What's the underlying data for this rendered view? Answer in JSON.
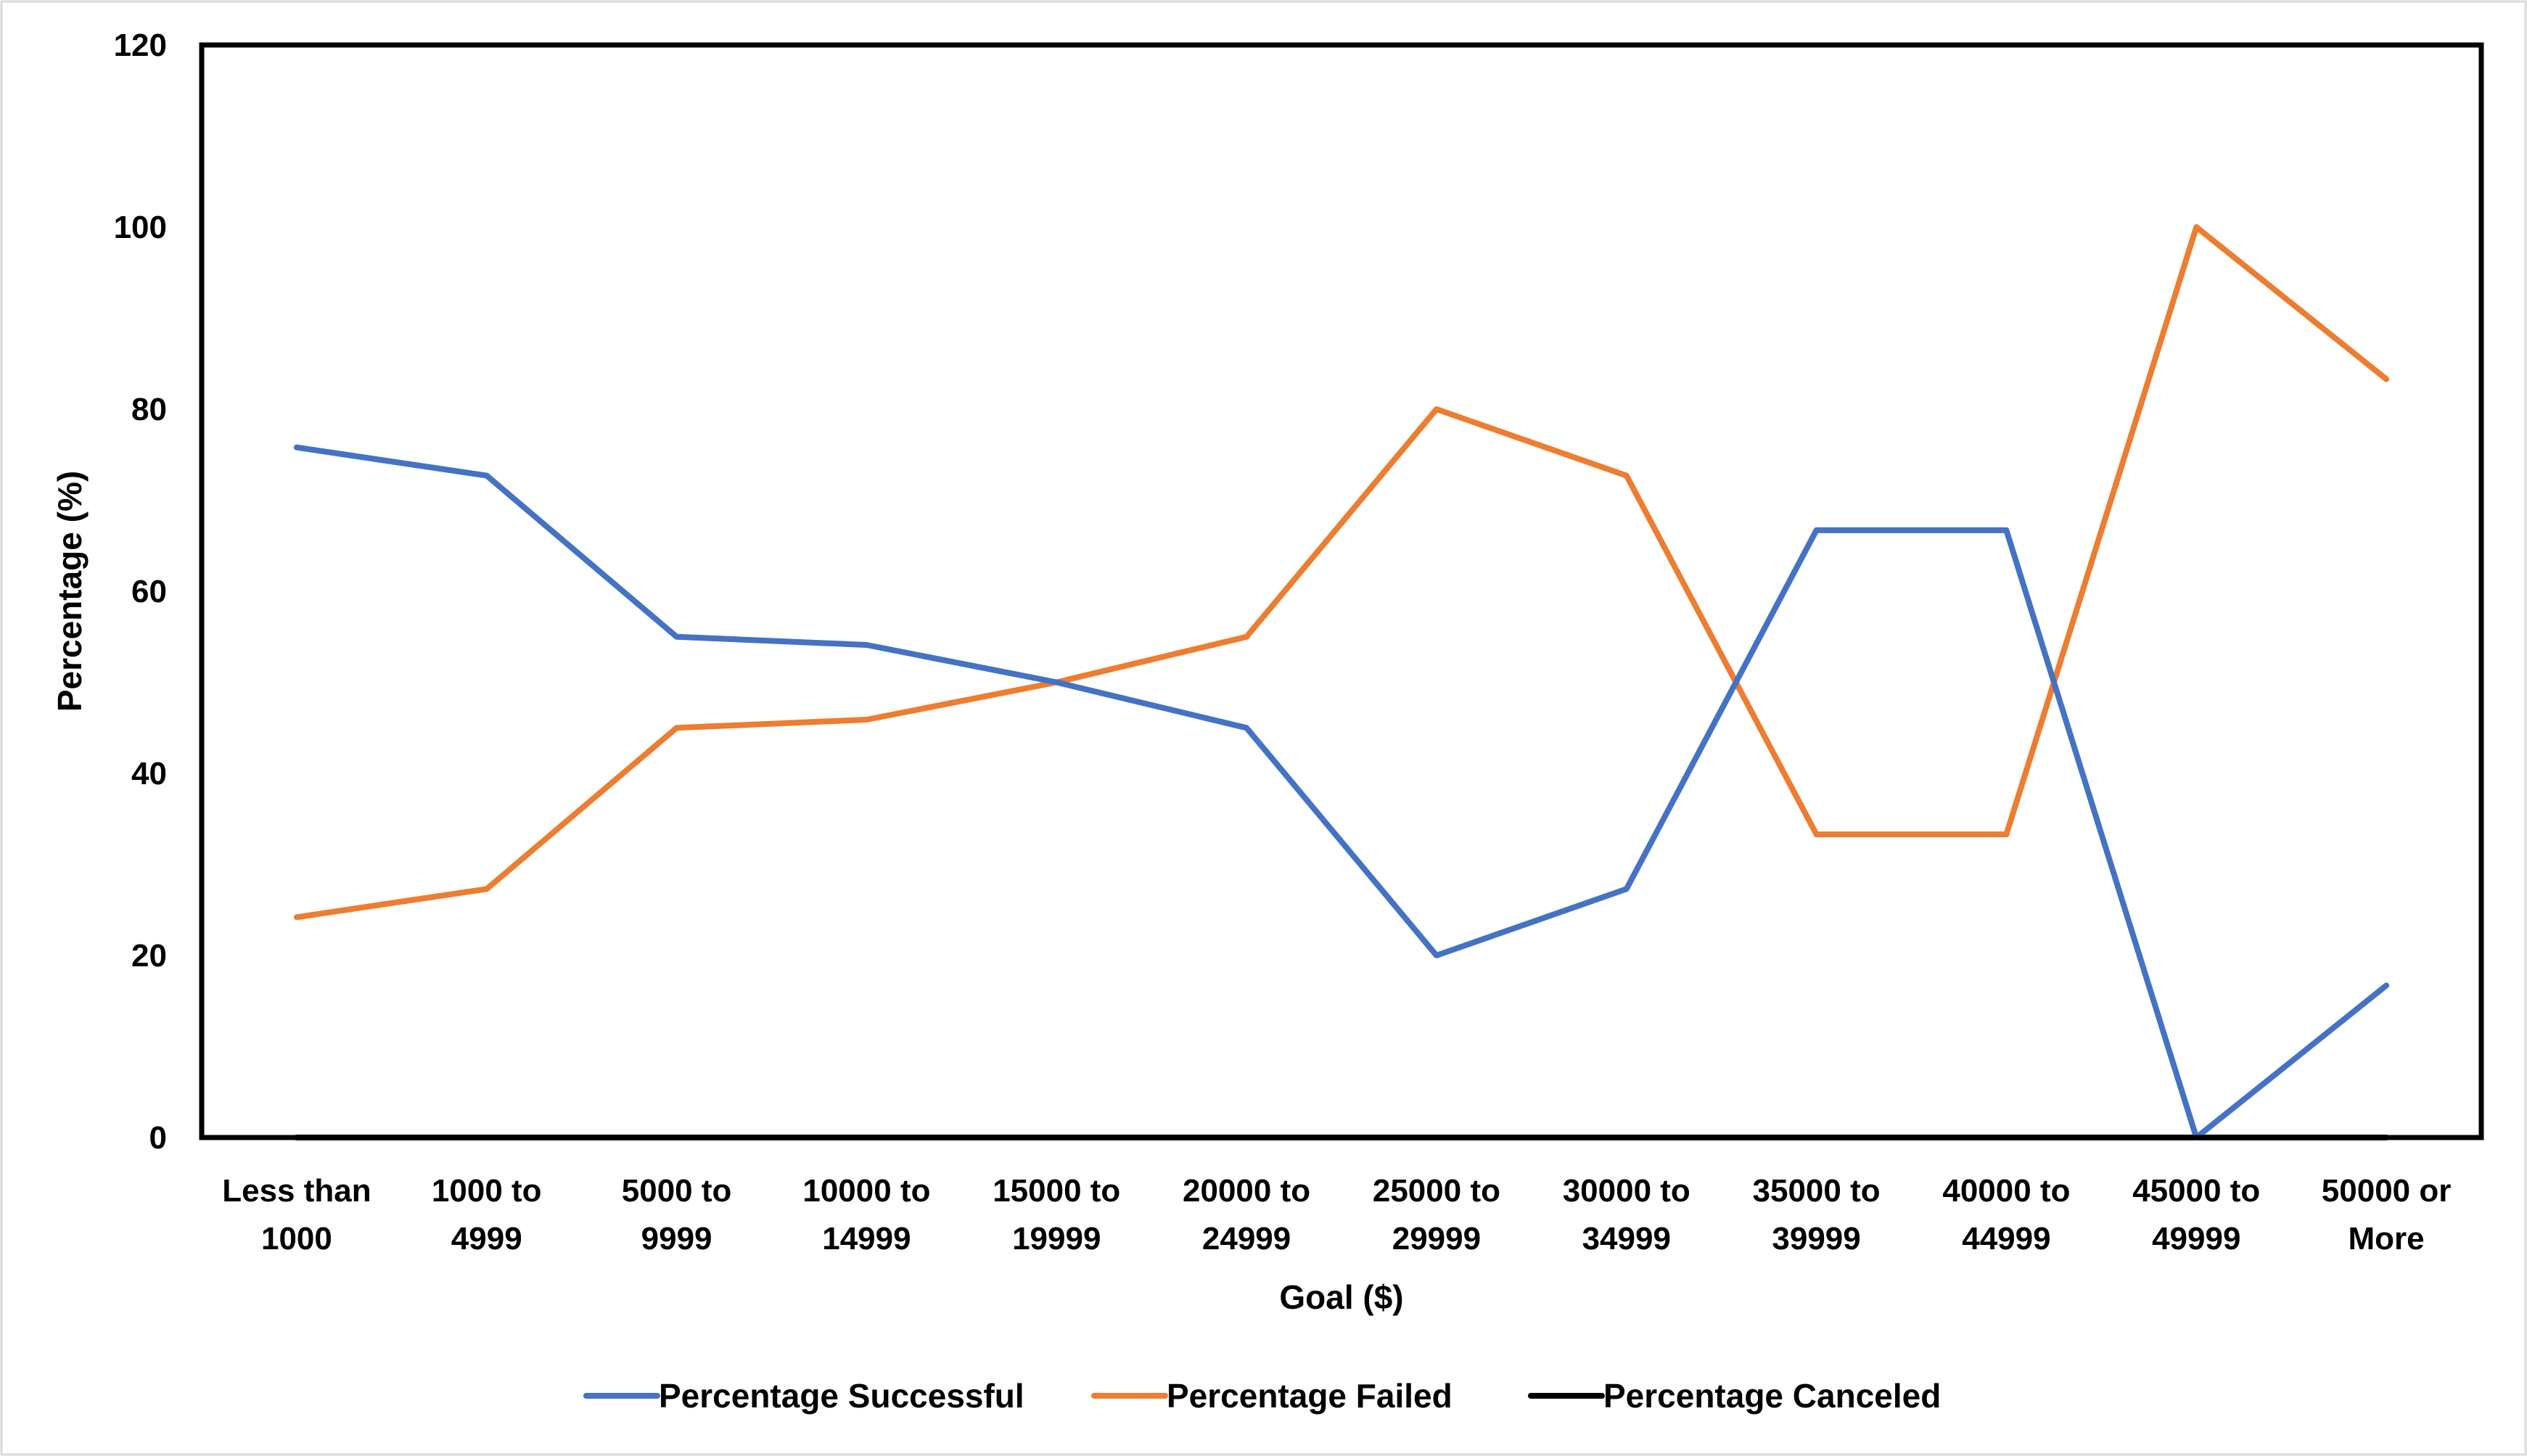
{
  "chart_data": {
    "type": "line",
    "title": "",
    "xlabel": "Goal ($)",
    "ylabel": "Percentage (%)",
    "ylim": [
      0,
      120
    ],
    "yticks": [
      "0",
      "20",
      "40",
      "60",
      "80",
      "100",
      "120"
    ],
    "grid": false,
    "legend_position": "bottom",
    "categories": [
      [
        "Less than",
        "1000"
      ],
      [
        "1000 to",
        "4999"
      ],
      [
        "5000 to",
        "9999"
      ],
      [
        "10000 to",
        "14999"
      ],
      [
        "15000 to",
        "19999"
      ],
      [
        "20000 to",
        "24999"
      ],
      [
        "25000 to",
        "29999"
      ],
      [
        "30000 to",
        "34999"
      ],
      [
        "35000 to",
        "39999"
      ],
      [
        "40000 to",
        "44999"
      ],
      [
        "45000 to",
        "49999"
      ],
      [
        "50000 or",
        "More"
      ]
    ],
    "series": [
      {
        "name": "Percentage Successful",
        "color": "#4472C4",
        "values": [
          75.8,
          72.7,
          55.0,
          54.1,
          50.0,
          45.0,
          20.0,
          27.3,
          66.7,
          66.7,
          0,
          16.7
        ]
      },
      {
        "name": "Percentage Failed",
        "color": "#ED7D31",
        "values": [
          24.2,
          27.3,
          45.0,
          45.9,
          50.0,
          55.0,
          80.0,
          72.7,
          33.3,
          33.3,
          100,
          83.3
        ]
      },
      {
        "name": "Percentage Canceled",
        "color": "#000000",
        "values": [
          0,
          0,
          0,
          0,
          0,
          0,
          0,
          0,
          0,
          0,
          0,
          0
        ]
      }
    ]
  }
}
